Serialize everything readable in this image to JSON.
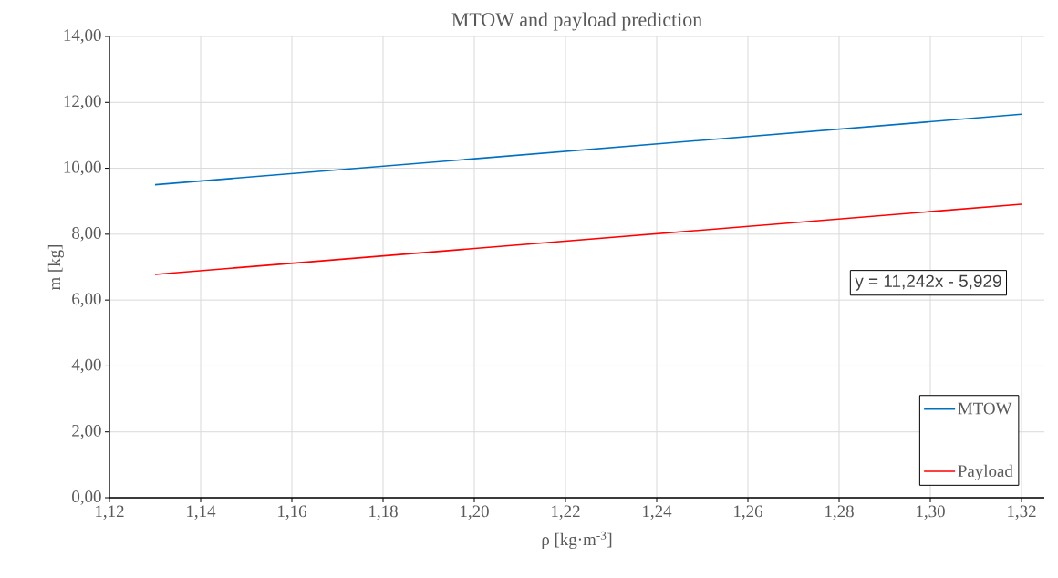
{
  "chart_data": {
    "type": "line",
    "title": "MTOW and payload prediction",
    "xlabel": "ρ [kg·m$^{-3}$]",
    "ylabel": "m [kg]",
    "x": [
      1.13,
      1.32
    ],
    "series": [
      {
        "name": "MTOW",
        "color": "#0070c0",
        "values": [
          9.5,
          11.64
        ]
      },
      {
        "name": "Payload",
        "color": "#ff0000",
        "values": [
          6.78,
          8.91
        ]
      }
    ],
    "xlim": [
      1.12,
      1.325
    ],
    "xticks": [
      {
        "value": 1.12,
        "label": "1,12"
      },
      {
        "value": 1.14,
        "label": "1,14"
      },
      {
        "value": 1.16,
        "label": "1,16"
      },
      {
        "value": 1.18,
        "label": "1,18"
      },
      {
        "value": 1.2,
        "label": "1,20"
      },
      {
        "value": 1.22,
        "label": "1,22"
      },
      {
        "value": 1.24,
        "label": "1,24"
      },
      {
        "value": 1.26,
        "label": "1,26"
      },
      {
        "value": 1.28,
        "label": "1,28"
      },
      {
        "value": 1.3,
        "label": "1,30"
      },
      {
        "value": 1.32,
        "label": "1,32"
      }
    ],
    "ylim": [
      0,
      14
    ],
    "yticks": [
      {
        "value": 0,
        "label": "0,00"
      },
      {
        "value": 2,
        "label": "2,00"
      },
      {
        "value": 4,
        "label": "4,00"
      },
      {
        "value": 6,
        "label": "6,00"
      },
      {
        "value": 8,
        "label": "8,00"
      },
      {
        "value": 10,
        "label": "10,00"
      },
      {
        "value": 12,
        "label": "12,00"
      },
      {
        "value": 14,
        "label": "14,00"
      }
    ],
    "grid": true,
    "legend": "bottom right",
    "annotations": [
      "y = 11,242x - 5,929"
    ]
  }
}
